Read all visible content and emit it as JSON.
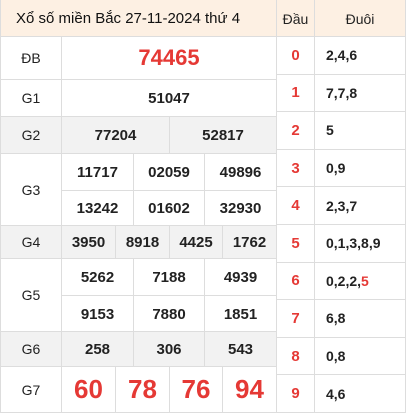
{
  "title": "Xổ số miền Bắc 27-11-2024 thứ 4",
  "colors": {
    "accent": "#e53935",
    "header_bg": "#fdf0e3",
    "shaded_bg": "#f2f2f2"
  },
  "prizes": {
    "db": {
      "label": "ĐB",
      "numbers": [
        "74465"
      ]
    },
    "g1": {
      "label": "G1",
      "numbers": [
        "51047"
      ]
    },
    "g2": {
      "label": "G2",
      "numbers": [
        "77204",
        "52817"
      ]
    },
    "g3": {
      "label": "G3",
      "numbers": [
        "11717",
        "02059",
        "49896",
        "13242",
        "01602",
        "32930"
      ]
    },
    "g4": {
      "label": "G4",
      "numbers": [
        "3950",
        "8918",
        "4425",
        "1762"
      ]
    },
    "g5": {
      "label": "G5",
      "numbers": [
        "5262",
        "7188",
        "4939",
        "9153",
        "7880",
        "1851"
      ]
    },
    "g6": {
      "label": "G6",
      "numbers": [
        "258",
        "306",
        "543"
      ]
    },
    "g7": {
      "label": "G7",
      "numbers": [
        "60",
        "78",
        "76",
        "94"
      ]
    }
  },
  "loto": {
    "head_label": "Đầu",
    "tail_label": "Đuôi",
    "rows": [
      {
        "dau": "0",
        "duoi": "2,4,6"
      },
      {
        "dau": "1",
        "duoi": "7,7,8"
      },
      {
        "dau": "2",
        "duoi": "5"
      },
      {
        "dau": "3",
        "duoi": "0,9"
      },
      {
        "dau": "4",
        "duoi": "2,3,7"
      },
      {
        "dau": "5",
        "duoi": "0,1,3,8,9"
      },
      {
        "dau": "6",
        "duoi": "0,2,2,",
        "duoi_special": "5"
      },
      {
        "dau": "7",
        "duoi": "6,8"
      },
      {
        "dau": "8",
        "duoi": "0,8"
      },
      {
        "dau": "9",
        "duoi": "4,6"
      }
    ]
  }
}
